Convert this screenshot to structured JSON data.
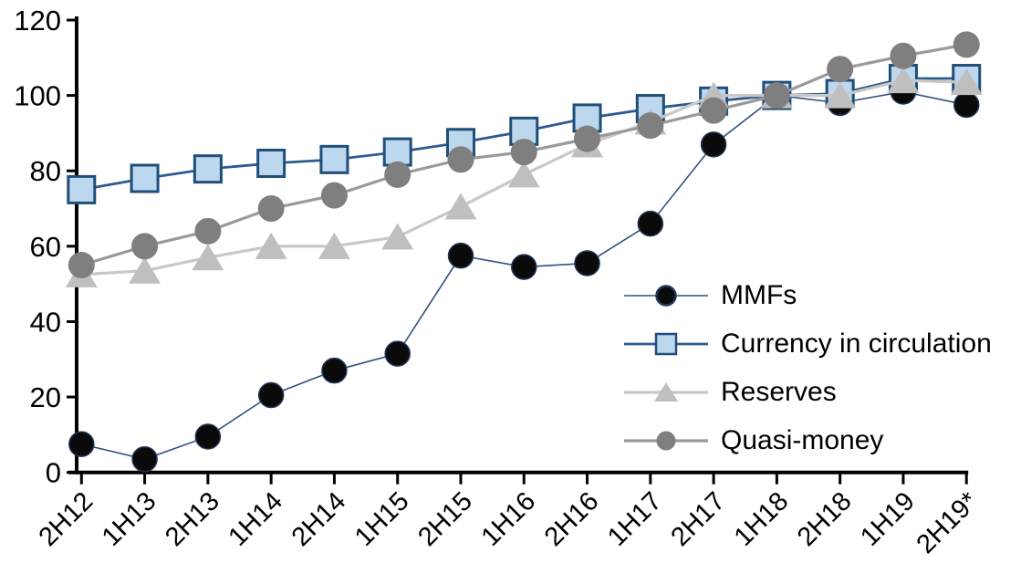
{
  "chart_data": {
    "type": "line",
    "title": "",
    "xlabel": "",
    "ylabel": "",
    "ylim": [
      0,
      120
    ],
    "yticks": [
      0,
      20,
      40,
      60,
      80,
      100,
      120
    ],
    "grid": false,
    "legend_position": "center-right-inside",
    "categories": [
      "2H12",
      "1H13",
      "2H13",
      "1H14",
      "2H14",
      "1H15",
      "2H15",
      "1H16",
      "2H16",
      "1H17",
      "2H17",
      "1H18",
      "2H18",
      "1H19",
      "2H19*"
    ],
    "series": [
      {
        "name": "MMFs",
        "marker": "circle",
        "line_color": "#31507F",
        "marker_fill": "#0A0A0A",
        "marker_stroke": "#22365A",
        "values": [
          7.5,
          3.5,
          9.5,
          20.5,
          27,
          31.5,
          57.5,
          54.5,
          55.5,
          66,
          87,
          100,
          98,
          101,
          97.5
        ]
      },
      {
        "name": "Currency in circulation",
        "marker": "square",
        "line_color": "#2E5B8F",
        "marker_fill": "#BDD7EE",
        "marker_stroke": "#1F4E79",
        "values": [
          75,
          78,
          80.5,
          82,
          83,
          85,
          87.5,
          90.5,
          94,
          96.5,
          98.5,
          100,
          100.5,
          104.5,
          104.5
        ]
      },
      {
        "name": "Reserves",
        "marker": "triangle",
        "line_color": "#C8C8C8",
        "marker_fill": "#BFBFBF",
        "marker_stroke": "none",
        "values": [
          52.5,
          53.5,
          57,
          60,
          60,
          62.5,
          70.5,
          79,
          87,
          93,
          100,
          100,
          100,
          104,
          103.5
        ]
      },
      {
        "name": "Quasi-money",
        "marker": "circle",
        "line_color": "#9A9A9A",
        "marker_fill": "#7F7F7F",
        "marker_stroke": "none",
        "values": [
          55,
          60,
          64,
          70,
          73.5,
          79,
          83,
          85,
          88.5,
          92,
          96,
          100,
          107,
          110.5,
          113.5
        ]
      }
    ],
    "axis_color": "#000000",
    "tick_label_color": "#000000"
  }
}
